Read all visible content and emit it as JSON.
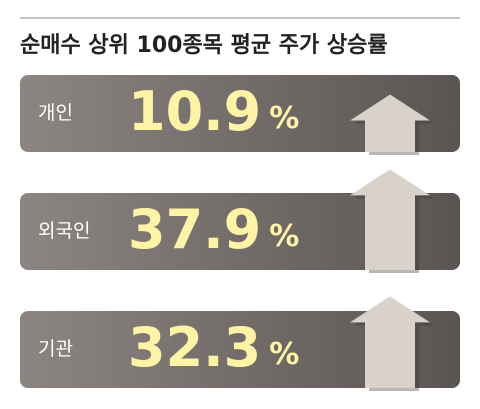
{
  "title": "순매수 상위 100종목 평균 주가 상승률",
  "items": [
    {
      "label": "개인",
      "value": 10.9,
      "unit": "%"
    },
    {
      "label": "외국인",
      "value": 37.9,
      "unit": "%"
    },
    {
      "label": "기관",
      "value": 32.3,
      "unit": "%"
    }
  ]
}
